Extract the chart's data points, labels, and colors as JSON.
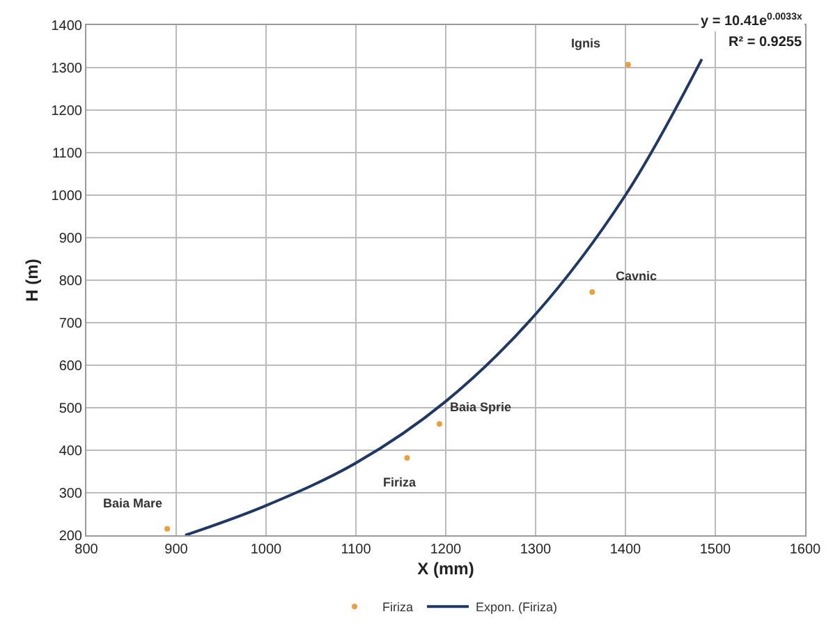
{
  "chart_data": {
    "type": "scatter",
    "xlabel": "X (mm)",
    "ylabel": "H (m)",
    "xlim": [
      800,
      1600
    ],
    "xticks": [
      800,
      900,
      1000,
      1100,
      1200,
      1300,
      1400,
      1500,
      1600
    ],
    "ylim": [
      200,
      1400
    ],
    "yticks": [
      200,
      300,
      400,
      500,
      600,
      700,
      800,
      900,
      1000,
      1100,
      1200,
      1300,
      1400
    ],
    "grid": true,
    "legend": "bottom",
    "series": [
      {
        "name": "Firiza",
        "marker": "circle",
        "color": "#e8a040",
        "x": [
          890,
          1157,
          1193,
          1363,
          1403
        ],
        "values": [
          215,
          382,
          462,
          772,
          1307
        ]
      },
      {
        "name": "Expon. (Firiza)",
        "type": "line",
        "color": "#1f3864",
        "x": [
          910,
          1000,
          1100,
          1200,
          1300,
          1400,
          1485
        ],
        "values": [
          200,
          270,
          370,
          515,
          720,
          1000,
          1320
        ]
      }
    ],
    "annotations": [
      {
        "text": "Baia Mare",
        "x": 890,
        "y": 215
      },
      {
        "text": "Firiza",
        "x": 1157,
        "y": 382
      },
      {
        "text": "Baia Sprie",
        "x": 1193,
        "y": 462
      },
      {
        "text": "Cavnic",
        "x": 1363,
        "y": 772
      },
      {
        "text": "Ignis",
        "x": 1403,
        "y": 1307
      },
      "y = 10.41e$^{0.0033x}$",
      "R² = 0.9255"
    ]
  }
}
